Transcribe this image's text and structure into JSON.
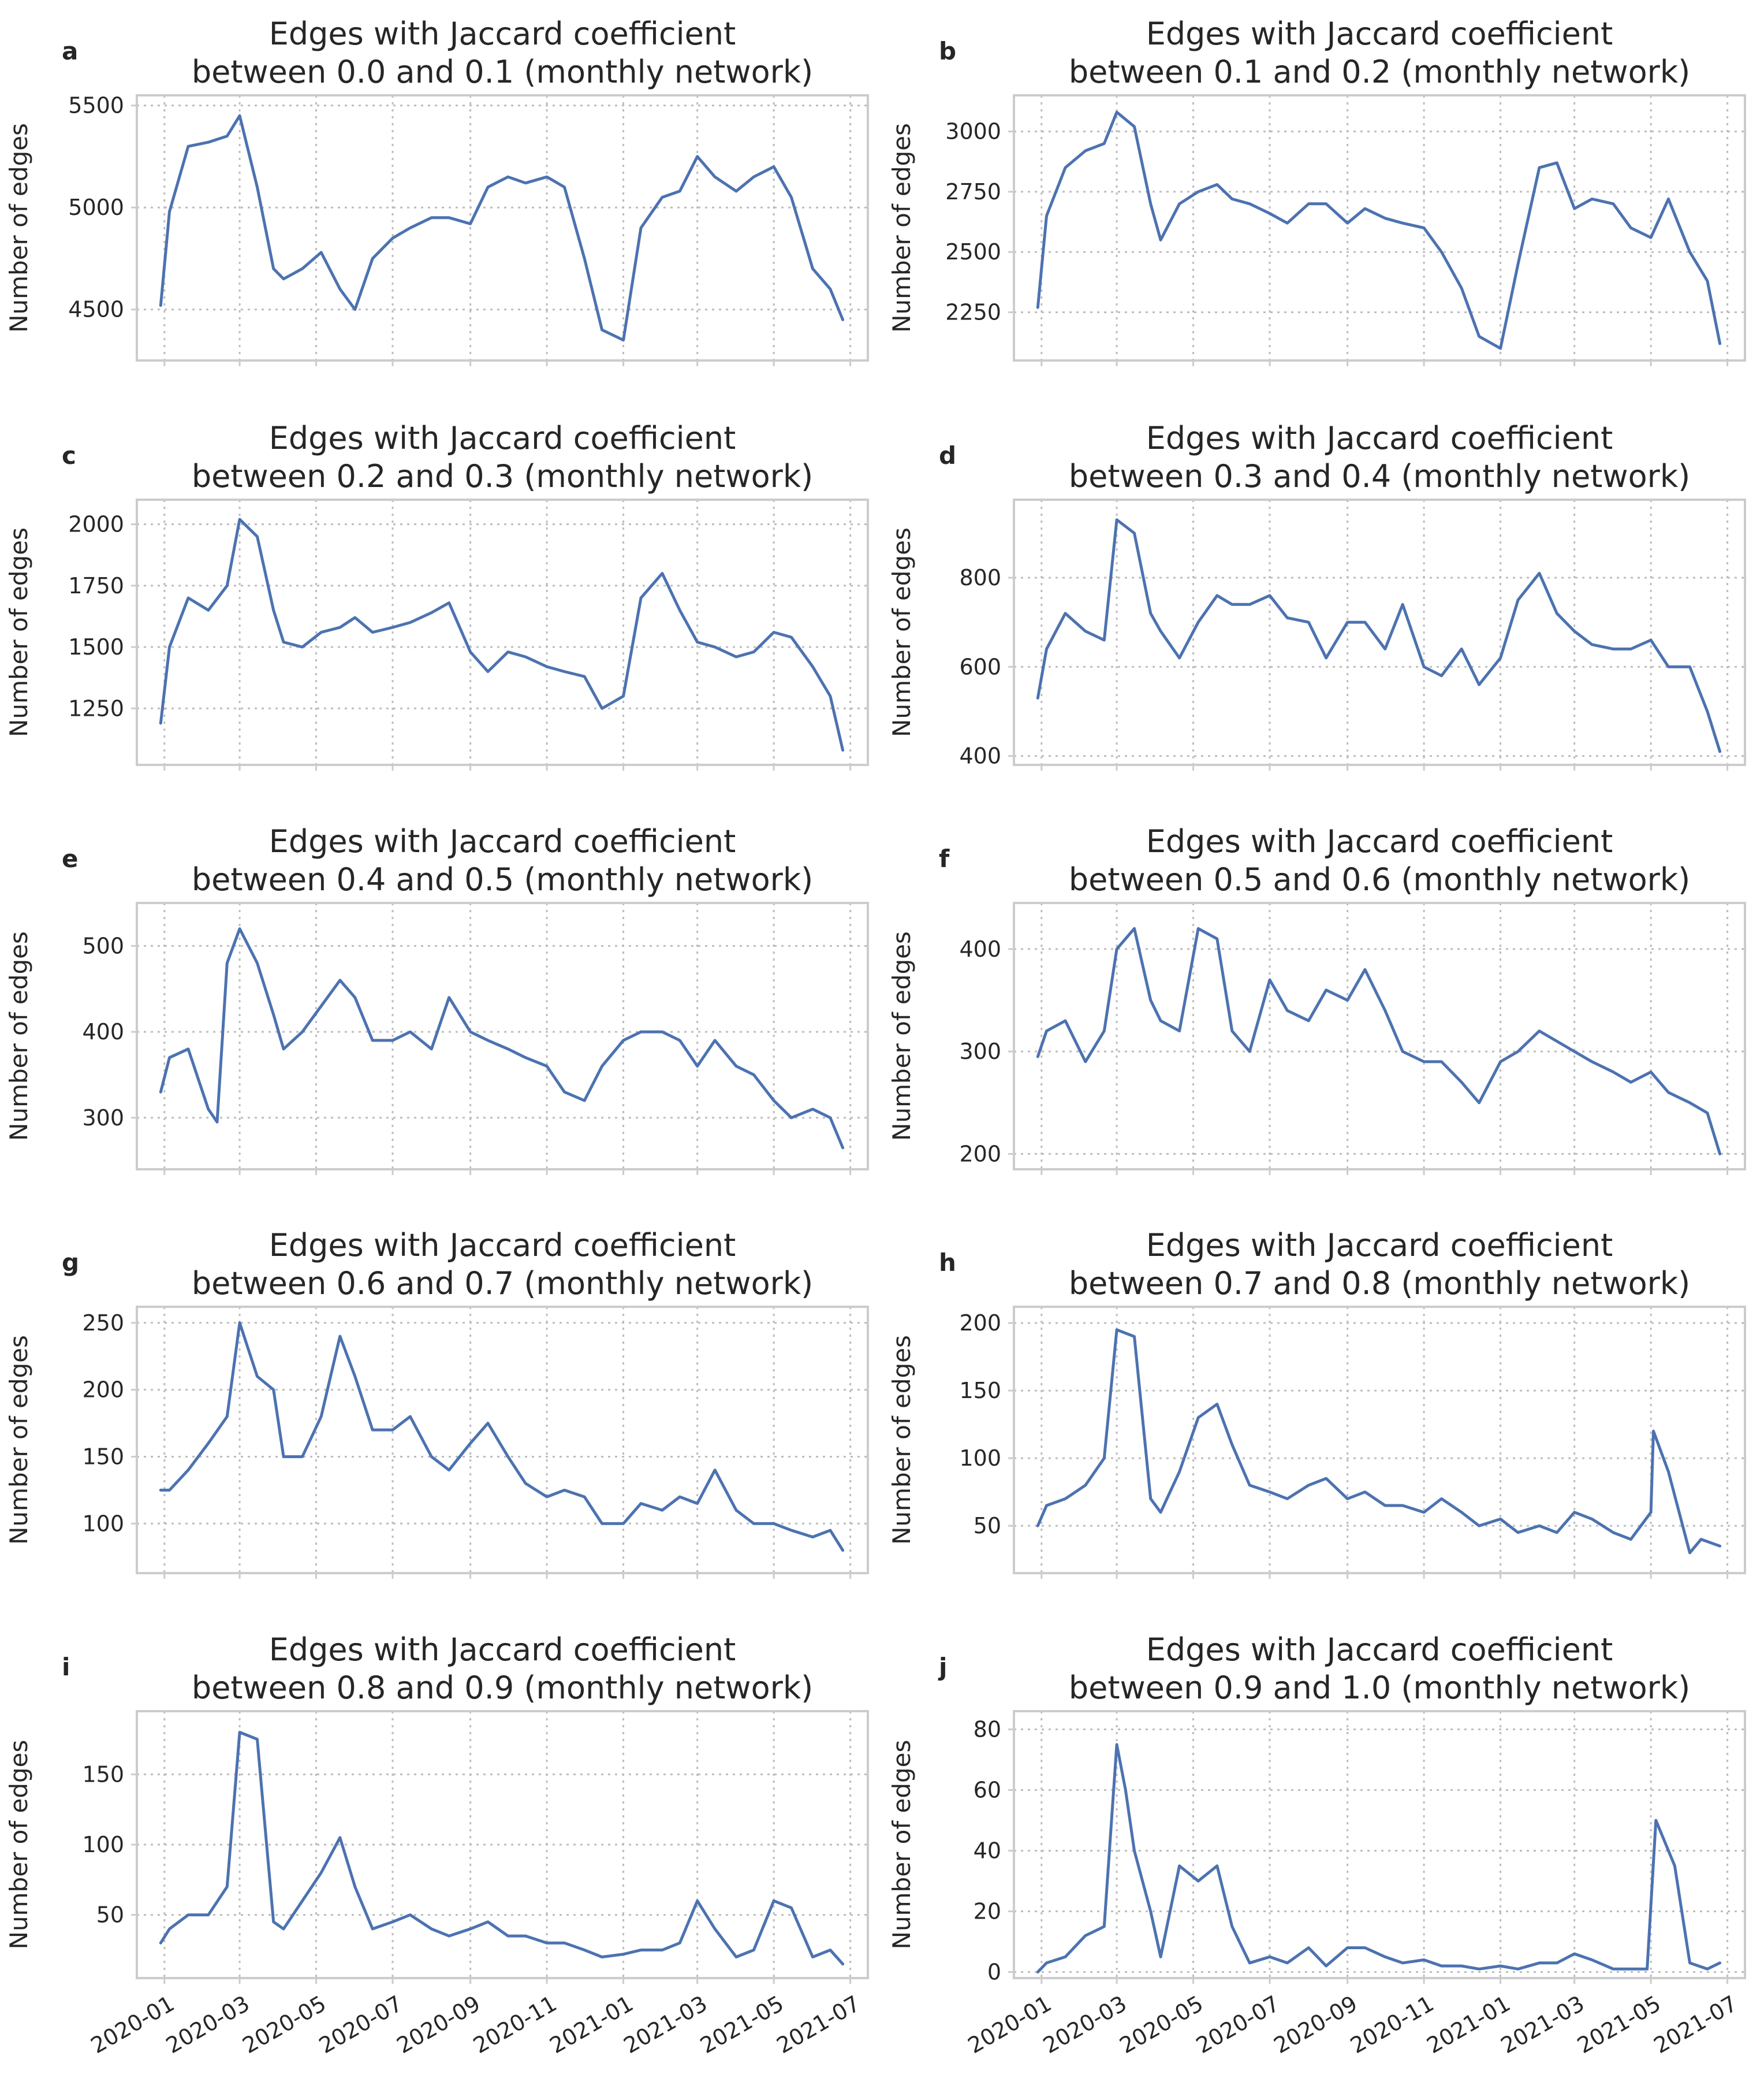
{
  "colors": {
    "series": "#4c72b0"
  },
  "x_tick_labels": [
    "2020-01",
    "2020-03",
    "2020-05",
    "2020-07",
    "2020-09",
    "2020-11",
    "2021-01",
    "2021-03",
    "2021-05",
    "2021-07"
  ],
  "chart_data": [
    {
      "type": "line",
      "panel": "a",
      "title_line1": "Edges with Jaccard coefficient",
      "title_line2": "between 0.0 and 0.1 (monthly network)",
      "ylabel": "Number of edges",
      "ylim": [
        4250,
        5550
      ],
      "yticks": [
        4500,
        5000,
        5500
      ],
      "ytick_labels": [
        "4500",
        "5000",
        "5500"
      ],
      "x": [
        "2019-12-29",
        "2020-01-05",
        "2020-01-20",
        "2020-02-05",
        "2020-02-20",
        "2020-03-01",
        "2020-03-15",
        "2020-03-28",
        "2020-04-05",
        "2020-04-20",
        "2020-05-05",
        "2020-05-20",
        "2020-06-01",
        "2020-06-15",
        "2020-07-01",
        "2020-07-15",
        "2020-08-01",
        "2020-08-15",
        "2020-09-01",
        "2020-09-15",
        "2020-10-01",
        "2020-10-15",
        "2020-11-01",
        "2020-11-15",
        "2020-12-01",
        "2020-12-15",
        "2021-01-01",
        "2021-01-15",
        "2021-02-01",
        "2021-02-15",
        "2021-03-01",
        "2021-03-15",
        "2021-04-01",
        "2021-04-15",
        "2021-05-01",
        "2021-05-15",
        "2021-06-01",
        "2021-06-15",
        "2021-06-25"
      ],
      "y": [
        4520,
        4980,
        5300,
        5320,
        5350,
        5450,
        5100,
        4700,
        4650,
        4700,
        4780,
        4600,
        4500,
        4750,
        4850,
        4900,
        4950,
        4950,
        4920,
        5100,
        5150,
        5120,
        5150,
        5100,
        4750,
        4400,
        4350,
        4900,
        5050,
        5080,
        5250,
        5150,
        5080,
        5150,
        5200,
        5050,
        4700,
        4600,
        4450
      ]
    },
    {
      "type": "line",
      "panel": "b",
      "title_line1": "Edges with Jaccard coefficient",
      "title_line2": "between 0.1 and 0.2 (monthly network)",
      "ylabel": "Number of edges",
      "ylim": [
        2050,
        3150
      ],
      "yticks": [
        2250,
        2500,
        2750,
        3000
      ],
      "ytick_labels": [
        "2250",
        "2500",
        "2750",
        "3000"
      ],
      "x": [
        "2019-12-29",
        "2020-01-05",
        "2020-01-20",
        "2020-02-05",
        "2020-02-20",
        "2020-03-01",
        "2020-03-15",
        "2020-03-28",
        "2020-04-05",
        "2020-04-20",
        "2020-05-05",
        "2020-05-20",
        "2020-06-01",
        "2020-06-15",
        "2020-07-01",
        "2020-07-15",
        "2020-08-01",
        "2020-08-15",
        "2020-09-01",
        "2020-09-15",
        "2020-10-01",
        "2020-10-15",
        "2020-11-01",
        "2020-11-15",
        "2020-12-01",
        "2020-12-15",
        "2021-01-01",
        "2021-01-15",
        "2021-02-01",
        "2021-02-15",
        "2021-03-01",
        "2021-03-15",
        "2021-04-01",
        "2021-04-15",
        "2021-05-01",
        "2021-05-15",
        "2021-06-01",
        "2021-06-15",
        "2021-06-25"
      ],
      "y": [
        2270,
        2650,
        2850,
        2920,
        2950,
        3080,
        3020,
        2700,
        2550,
        2700,
        2750,
        2780,
        2720,
        2700,
        2660,
        2620,
        2700,
        2700,
        2620,
        2680,
        2640,
        2620,
        2600,
        2500,
        2350,
        2150,
        2100,
        2450,
        2850,
        2870,
        2680,
        2720,
        2700,
        2600,
        2560,
        2720,
        2500,
        2380,
        2120
      ]
    },
    {
      "type": "line",
      "panel": "c",
      "title_line1": "Edges with Jaccard coefficient",
      "title_line2": "between 0.2 and 0.3 (monthly network)",
      "ylabel": "Number of edges",
      "ylim": [
        1020,
        2100
      ],
      "yticks": [
        1250,
        1500,
        1750,
        2000
      ],
      "ytick_labels": [
        "1250",
        "1500",
        "1750",
        "2000"
      ],
      "x": [
        "2019-12-29",
        "2020-01-05",
        "2020-01-20",
        "2020-02-05",
        "2020-02-20",
        "2020-03-01",
        "2020-03-15",
        "2020-03-28",
        "2020-04-05",
        "2020-04-20",
        "2020-05-05",
        "2020-05-20",
        "2020-06-01",
        "2020-06-15",
        "2020-07-01",
        "2020-07-15",
        "2020-08-01",
        "2020-08-15",
        "2020-09-01",
        "2020-09-15",
        "2020-10-01",
        "2020-10-15",
        "2020-11-01",
        "2020-11-15",
        "2020-12-01",
        "2020-12-15",
        "2021-01-01",
        "2021-01-15",
        "2021-02-01",
        "2021-02-15",
        "2021-03-01",
        "2021-03-15",
        "2021-04-01",
        "2021-04-15",
        "2021-05-01",
        "2021-05-15",
        "2021-06-01",
        "2021-06-15",
        "2021-06-25"
      ],
      "y": [
        1190,
        1500,
        1700,
        1650,
        1750,
        2020,
        1950,
        1650,
        1520,
        1500,
        1560,
        1580,
        1620,
        1560,
        1580,
        1600,
        1640,
        1680,
        1480,
        1400,
        1480,
        1460,
        1420,
        1400,
        1380,
        1250,
        1300,
        1700,
        1800,
        1650,
        1520,
        1500,
        1460,
        1480,
        1560,
        1540,
        1420,
        1300,
        1080
      ]
    },
    {
      "type": "line",
      "panel": "d",
      "title_line1": "Edges with Jaccard coefficient",
      "title_line2": "between 0.3 and 0.4 (monthly network)",
      "ylabel": "Number of edges",
      "ylim": [
        380,
        975
      ],
      "yticks": [
        400,
        600,
        800
      ],
      "ytick_labels": [
        "400",
        "600",
        "800"
      ],
      "x": [
        "2019-12-29",
        "2020-01-05",
        "2020-01-20",
        "2020-02-05",
        "2020-02-20",
        "2020-03-01",
        "2020-03-15",
        "2020-03-28",
        "2020-04-05",
        "2020-04-20",
        "2020-05-05",
        "2020-05-20",
        "2020-06-01",
        "2020-06-15",
        "2020-07-01",
        "2020-07-15",
        "2020-08-01",
        "2020-08-15",
        "2020-09-01",
        "2020-09-15",
        "2020-10-01",
        "2020-10-15",
        "2020-11-01",
        "2020-11-15",
        "2020-12-01",
        "2020-12-15",
        "2021-01-01",
        "2021-01-15",
        "2021-02-01",
        "2021-02-15",
        "2021-03-01",
        "2021-03-15",
        "2021-04-01",
        "2021-04-15",
        "2021-05-01",
        "2021-05-15",
        "2021-06-01",
        "2021-06-15",
        "2021-06-25"
      ],
      "y": [
        530,
        640,
        720,
        680,
        660,
        930,
        900,
        720,
        680,
        620,
        700,
        760,
        740,
        740,
        760,
        710,
        700,
        620,
        700,
        700,
        640,
        740,
        600,
        580,
        640,
        560,
        620,
        750,
        810,
        720,
        680,
        650,
        640,
        640,
        660,
        600,
        600,
        500,
        410
      ]
    },
    {
      "type": "line",
      "panel": "e",
      "title_line1": "Edges with Jaccard coefficient",
      "title_line2": "between 0.4 and 0.5 (monthly network)",
      "ylabel": "Number of edges",
      "ylim": [
        240,
        550
      ],
      "yticks": [
        300,
        400,
        500
      ],
      "ytick_labels": [
        "300",
        "400",
        "500"
      ],
      "x": [
        "2019-12-29",
        "2020-01-05",
        "2020-01-20",
        "2020-02-05",
        "2020-02-12",
        "2020-02-20",
        "2020-03-01",
        "2020-03-15",
        "2020-03-28",
        "2020-04-05",
        "2020-04-20",
        "2020-05-05",
        "2020-05-20",
        "2020-06-01",
        "2020-06-15",
        "2020-07-01",
        "2020-07-15",
        "2020-08-01",
        "2020-08-15",
        "2020-09-01",
        "2020-09-15",
        "2020-10-01",
        "2020-10-15",
        "2020-11-01",
        "2020-11-15",
        "2020-12-01",
        "2020-12-15",
        "2021-01-01",
        "2021-01-15",
        "2021-02-01",
        "2021-02-15",
        "2021-03-01",
        "2021-03-15",
        "2021-04-01",
        "2021-04-15",
        "2021-05-01",
        "2021-05-15",
        "2021-06-01",
        "2021-06-15",
        "2021-06-25"
      ],
      "y": [
        330,
        370,
        380,
        310,
        295,
        480,
        520,
        480,
        420,
        380,
        400,
        430,
        460,
        440,
        390,
        390,
        400,
        380,
        440,
        400,
        390,
        380,
        370,
        360,
        330,
        320,
        360,
        390,
        400,
        400,
        390,
        360,
        390,
        360,
        350,
        320,
        300,
        310,
        300,
        265
      ]
    },
    {
      "type": "line",
      "panel": "f",
      "title_line1": "Edges with Jaccard coefficient",
      "title_line2": "between 0.5 and 0.6 (monthly network)",
      "ylabel": "Number of edges",
      "ylim": [
        185,
        445
      ],
      "yticks": [
        200,
        300,
        400
      ],
      "ytick_labels": [
        "200",
        "300",
        "400"
      ],
      "x": [
        "2019-12-29",
        "2020-01-05",
        "2020-01-20",
        "2020-02-05",
        "2020-02-20",
        "2020-03-01",
        "2020-03-15",
        "2020-03-28",
        "2020-04-05",
        "2020-04-20",
        "2020-05-05",
        "2020-05-20",
        "2020-06-01",
        "2020-06-15",
        "2020-07-01",
        "2020-07-15",
        "2020-08-01",
        "2020-08-15",
        "2020-09-01",
        "2020-09-15",
        "2020-10-01",
        "2020-10-15",
        "2020-11-01",
        "2020-11-15",
        "2020-12-01",
        "2020-12-15",
        "2021-01-01",
        "2021-01-15",
        "2021-02-01",
        "2021-02-15",
        "2021-03-01",
        "2021-03-15",
        "2021-04-01",
        "2021-04-15",
        "2021-05-01",
        "2021-05-15",
        "2021-06-01",
        "2021-06-15",
        "2021-06-25"
      ],
      "y": [
        295,
        320,
        330,
        290,
        320,
        400,
        420,
        350,
        330,
        320,
        420,
        410,
        320,
        300,
        370,
        340,
        330,
        360,
        350,
        380,
        340,
        300,
        290,
        290,
        270,
        250,
        290,
        300,
        320,
        310,
        300,
        290,
        280,
        270,
        280,
        260,
        250,
        240,
        200
      ]
    },
    {
      "type": "line",
      "panel": "g",
      "title_line1": "Edges with Jaccard coefficient",
      "title_line2": "between 0.6 and 0.7 (monthly network)",
      "ylabel": "Number of edges",
      "ylim": [
        63,
        262
      ],
      "yticks": [
        100,
        150,
        200,
        250
      ],
      "ytick_labels": [
        "100",
        "150",
        "200",
        "250"
      ],
      "x": [
        "2019-12-29",
        "2020-01-05",
        "2020-01-20",
        "2020-02-05",
        "2020-02-20",
        "2020-03-01",
        "2020-03-15",
        "2020-03-28",
        "2020-04-05",
        "2020-04-20",
        "2020-05-05",
        "2020-05-20",
        "2020-06-01",
        "2020-06-15",
        "2020-07-01",
        "2020-07-15",
        "2020-08-01",
        "2020-08-15",
        "2020-09-01",
        "2020-09-15",
        "2020-10-01",
        "2020-10-15",
        "2020-11-01",
        "2020-11-15",
        "2020-12-01",
        "2020-12-15",
        "2021-01-01",
        "2021-01-15",
        "2021-02-01",
        "2021-02-15",
        "2021-03-01",
        "2021-03-15",
        "2021-04-01",
        "2021-04-15",
        "2021-05-01",
        "2021-05-15",
        "2021-06-01",
        "2021-06-15",
        "2021-06-25"
      ],
      "y": [
        125,
        125,
        140,
        160,
        180,
        250,
        210,
        200,
        150,
        150,
        180,
        240,
        210,
        170,
        170,
        180,
        150,
        140,
        160,
        175,
        150,
        130,
        120,
        125,
        120,
        100,
        100,
        115,
        110,
        120,
        115,
        140,
        110,
        100,
        100,
        95,
        90,
        95,
        80
      ]
    },
    {
      "type": "line",
      "panel": "h",
      "title_line1": "Edges with Jaccard coefficient",
      "title_line2": "between 0.7 and 0.8 (monthly network)",
      "ylabel": "Number of edges",
      "ylim": [
        15,
        212
      ],
      "yticks": [
        50,
        100,
        150,
        200
      ],
      "ytick_labels": [
        "50",
        "100",
        "150",
        "200"
      ],
      "x": [
        "2019-12-29",
        "2020-01-05",
        "2020-01-20",
        "2020-02-05",
        "2020-02-20",
        "2020-03-01",
        "2020-03-15",
        "2020-03-28",
        "2020-04-05",
        "2020-04-20",
        "2020-05-05",
        "2020-05-20",
        "2020-06-01",
        "2020-06-15",
        "2020-07-01",
        "2020-07-15",
        "2020-08-01",
        "2020-08-15",
        "2020-09-01",
        "2020-09-15",
        "2020-10-01",
        "2020-10-15",
        "2020-11-01",
        "2020-11-15",
        "2020-12-01",
        "2020-12-15",
        "2021-01-01",
        "2021-01-15",
        "2021-02-01",
        "2021-02-15",
        "2021-03-01",
        "2021-03-15",
        "2021-04-01",
        "2021-04-15",
        "2021-05-01",
        "2021-05-03",
        "2021-05-15",
        "2021-06-01",
        "2021-06-10",
        "2021-06-25"
      ],
      "y": [
        50,
        65,
        70,
        80,
        100,
        195,
        190,
        70,
        60,
        90,
        130,
        140,
        110,
        80,
        75,
        70,
        80,
        85,
        70,
        75,
        65,
        65,
        60,
        70,
        60,
        50,
        55,
        45,
        50,
        45,
        60,
        55,
        45,
        40,
        60,
        120,
        90,
        30,
        40,
        35
      ]
    },
    {
      "type": "line",
      "panel": "i",
      "title_line1": "Edges with Jaccard coefficient",
      "title_line2": "between 0.8 and 0.9 (monthly network)",
      "ylabel": "Number of edges",
      "ylim": [
        5,
        195
      ],
      "yticks": [
        50,
        100,
        150
      ],
      "ytick_labels": [
        "50",
        "100",
        "150"
      ],
      "x": [
        "2019-12-29",
        "2020-01-05",
        "2020-01-20",
        "2020-02-05",
        "2020-02-20",
        "2020-03-01",
        "2020-03-15",
        "2020-03-28",
        "2020-04-05",
        "2020-04-20",
        "2020-05-05",
        "2020-05-20",
        "2020-06-01",
        "2020-06-15",
        "2020-07-01",
        "2020-07-15",
        "2020-08-01",
        "2020-08-15",
        "2020-09-01",
        "2020-09-15",
        "2020-10-01",
        "2020-10-15",
        "2020-11-01",
        "2020-11-15",
        "2020-12-01",
        "2020-12-15",
        "2021-01-01",
        "2021-01-15",
        "2021-02-01",
        "2021-02-15",
        "2021-03-01",
        "2021-03-15",
        "2021-04-01",
        "2021-04-15",
        "2021-05-01",
        "2021-05-15",
        "2021-06-01",
        "2021-06-15",
        "2021-06-25"
      ],
      "y": [
        30,
        40,
        50,
        50,
        70,
        180,
        175,
        45,
        40,
        60,
        80,
        105,
        70,
        40,
        45,
        50,
        40,
        35,
        40,
        45,
        35,
        35,
        30,
        30,
        25,
        20,
        22,
        25,
        25,
        30,
        60,
        40,
        20,
        25,
        60,
        55,
        20,
        25,
        15
      ]
    },
    {
      "type": "line",
      "panel": "j",
      "title_line1": "Edges with Jaccard coefficient",
      "title_line2": "between 0.9 and 1.0 (monthly network)",
      "ylabel": "Number of edges",
      "ylim": [
        -2,
        86
      ],
      "yticks": [
        0,
        20,
        40,
        60,
        80
      ],
      "ytick_labels": [
        "0",
        "20",
        "40",
        "60",
        "80"
      ],
      "x": [
        "2019-12-29",
        "2020-01-05",
        "2020-01-20",
        "2020-02-05",
        "2020-02-20",
        "2020-03-01",
        "2020-03-08",
        "2020-03-15",
        "2020-03-28",
        "2020-04-05",
        "2020-04-20",
        "2020-05-05",
        "2020-05-20",
        "2020-06-01",
        "2020-06-15",
        "2020-07-01",
        "2020-07-15",
        "2020-08-01",
        "2020-08-15",
        "2020-09-01",
        "2020-09-15",
        "2020-10-01",
        "2020-10-15",
        "2020-11-01",
        "2020-11-15",
        "2020-12-01",
        "2020-12-15",
        "2021-01-01",
        "2021-01-15",
        "2021-02-01",
        "2021-02-15",
        "2021-03-01",
        "2021-03-15",
        "2021-04-01",
        "2021-04-15",
        "2021-04-28",
        "2021-05-05",
        "2021-05-20",
        "2021-06-01",
        "2021-06-15",
        "2021-06-25"
      ],
      "y": [
        0,
        3,
        5,
        12,
        15,
        75,
        60,
        40,
        20,
        5,
        35,
        30,
        35,
        15,
        3,
        5,
        3,
        8,
        2,
        8,
        8,
        5,
        3,
        4,
        2,
        2,
        1,
        2,
        1,
        3,
        3,
        6,
        4,
        1,
        1,
        1,
        50,
        35,
        3,
        1,
        3
      ]
    }
  ],
  "panel_letters": [
    "a",
    "b",
    "c",
    "d",
    "e",
    "f",
    "g",
    "h",
    "i",
    "j"
  ]
}
